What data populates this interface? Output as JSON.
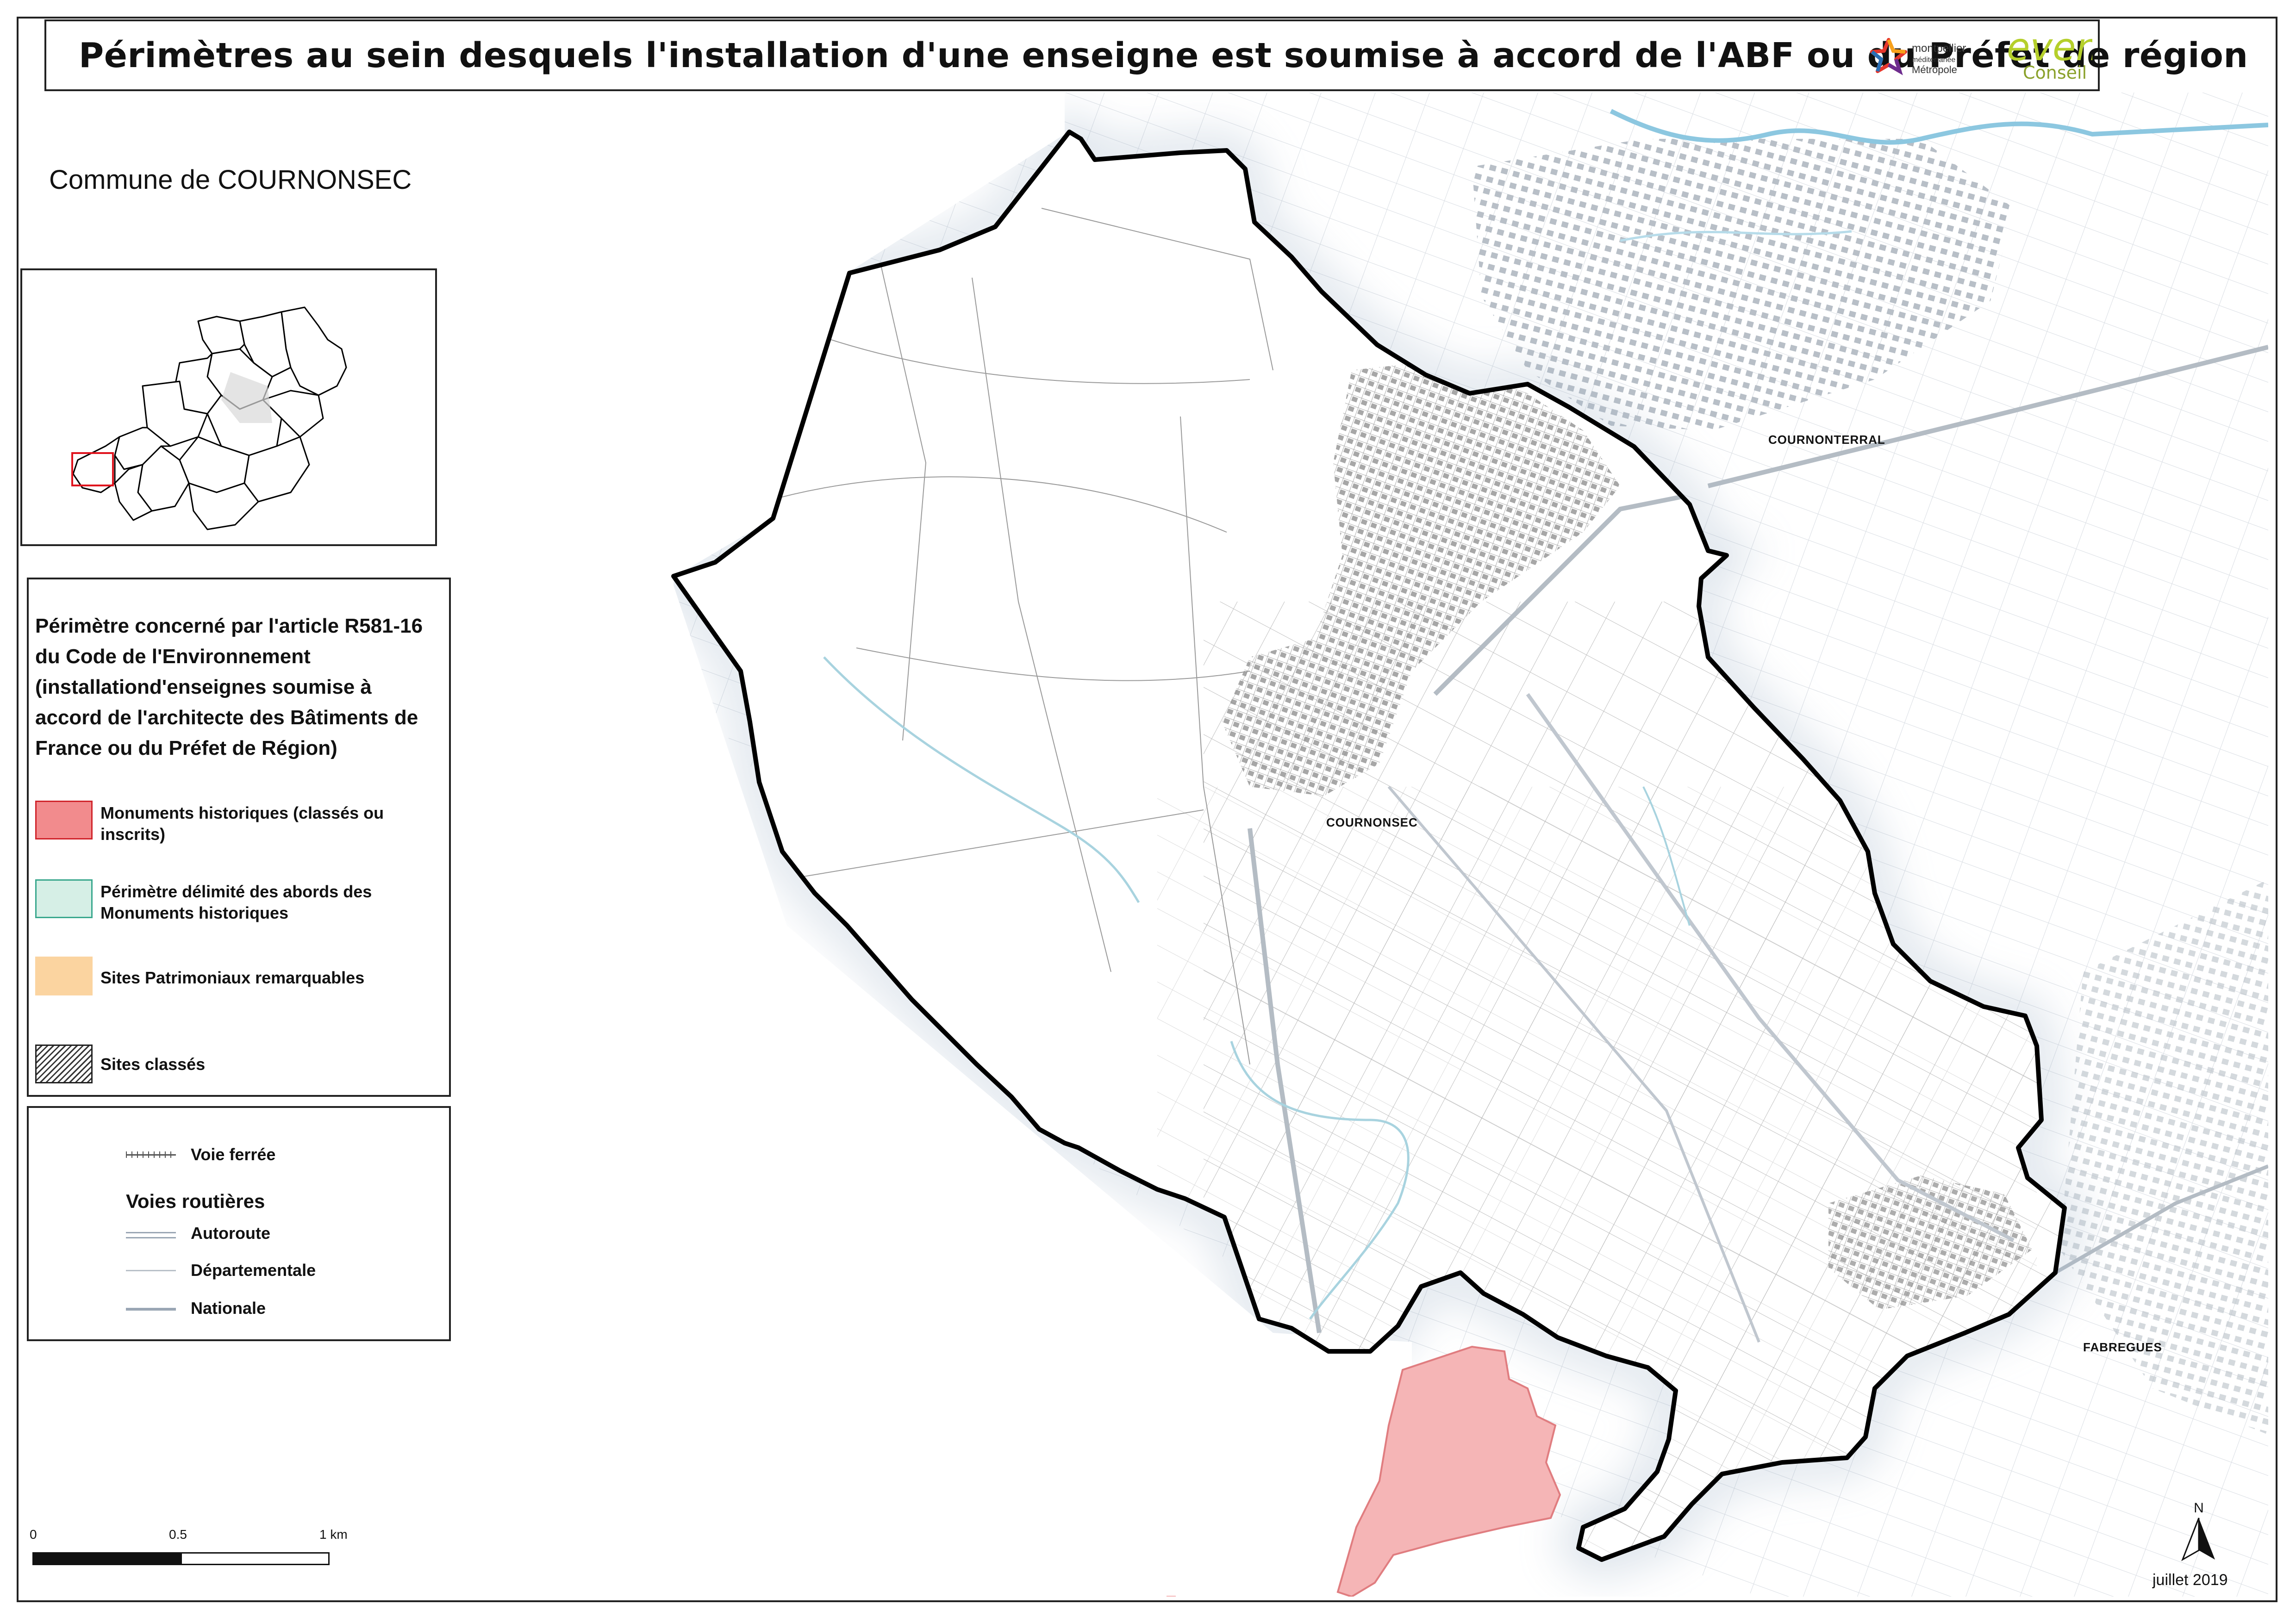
{
  "title": "Périmètres au sein desquels l'installation d'une enseigne est soumise à accord de l'ABF ou du Préfet de région",
  "logos": {
    "montpellier_line1": "montpellier",
    "montpellier_line2": "méditerranée",
    "montpellier_line3": "Métropole",
    "even_word": "even",
    "even_sub": "Conseil"
  },
  "commune_label": "Commune de COURNONSEC",
  "legend_perimetre": {
    "title": "Périmètre concerné par l'article R581-16 du Code de l'Environnement (installationd'enseignes soumise à accord de l'architecte des Bâtiments de France ou du Préfet de Région)",
    "items": [
      {
        "label": "Monuments historiques (classés ou inscrits)",
        "fill": "#f28b8d",
        "border": "#d0242b"
      },
      {
        "label": "Périmètre délimité des abords des Monuments historiques",
        "fill": "#d6efe6",
        "border": "#3aa88e"
      },
      {
        "label": "Sites Patrimoniaux remarquables",
        "fill": "#fbd4a0",
        "border": "#fbd4a0"
      },
      {
        "label": "Sites classés",
        "fill": "hatched",
        "border": "#222222"
      }
    ]
  },
  "legend_voies": {
    "voie_ferree": "Voie ferrée",
    "heading": "Voies routières",
    "autoroute": "Autoroute",
    "departementale": "Départementale",
    "nationale": "Nationale"
  },
  "places": {
    "cournonterral": "COURNONTERRAL",
    "cournonsec": "COURNONSEC",
    "fabregues": "FABREGUES"
  },
  "scale": {
    "t0": "0",
    "t1": "0.5",
    "t2": "1 km"
  },
  "north_label": "N",
  "date": "juillet 2019",
  "colors": {
    "boundary": "#000000",
    "monument_fill": "#f5b5b6",
    "monument_border": "#e07d80",
    "overview_highlight": "#e0141e"
  },
  "icons": [
    "north-arrow-icon",
    "montpellier-star-logo",
    "even-conseil-logo"
  ]
}
